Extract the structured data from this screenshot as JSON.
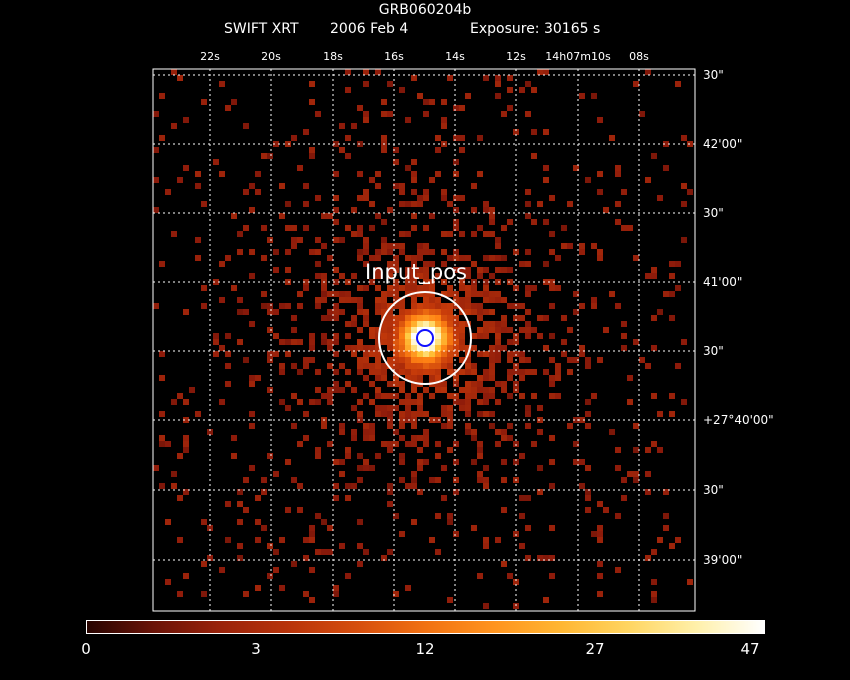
{
  "title": {
    "line1": "GRB060204b",
    "line2_instrument": "SWIFT XRT",
    "line2_date": "2006 Feb  4",
    "line2_exposure": "Exposure: 30165 s"
  },
  "ra_ticks": [
    "22s",
    "20s",
    "18s",
    "16s",
    "14s",
    "12s",
    "14h07m10s",
    "08s"
  ],
  "dec_ticks": [
    "30\"",
    "42'00\"",
    "30\"",
    "41'00\"",
    "30\"",
    "+27°40'00\"",
    "30\"",
    "39'00\""
  ],
  "source_label": "Input_pos",
  "colorbar": {
    "ticks": [
      "0",
      "3",
      "12",
      "27",
      "47"
    ]
  },
  "colors": {
    "background": "#000000",
    "grid": "#ffffff",
    "source_circle": "#ffffff",
    "position_circle": "#1010ff",
    "low_count": "#8c1a0a",
    "high_count": "#ffffff"
  }
}
